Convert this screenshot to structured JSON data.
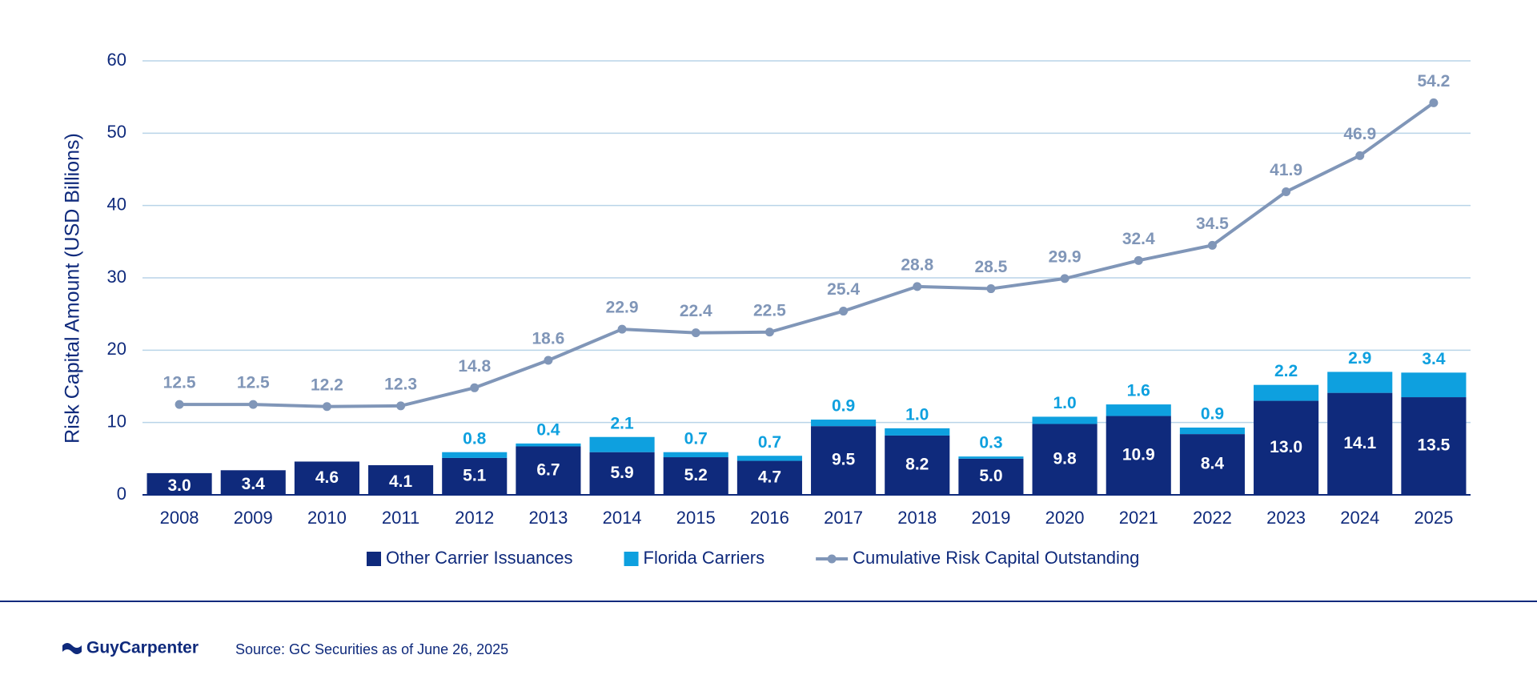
{
  "chart_data": {
    "type": "bar",
    "stacked": true,
    "y_label": "Risk Capital Amount (USD Billions)",
    "categories": [
      "2008",
      "2009",
      "2010",
      "2011",
      "2012",
      "2013",
      "2014",
      "2015",
      "2016",
      "2017",
      "2018",
      "2019",
      "2020",
      "2021",
      "2022",
      "2023",
      "2024",
      "2025"
    ],
    "series": [
      {
        "name": "Other Carrier Issuances",
        "color": "#0f2a7c",
        "type": "bar",
        "values": [
          3.0,
          3.4,
          4.6,
          4.1,
          5.1,
          6.7,
          5.9,
          5.2,
          4.7,
          9.5,
          8.2,
          5.0,
          9.8,
          10.9,
          8.4,
          13.0,
          14.1,
          13.5
        ],
        "value_labels": [
          "3.0",
          "3.4",
          "4.6",
          "4.1",
          "5.1",
          "6.7",
          "5.9",
          "5.2",
          "4.7",
          "9.5",
          "8.2",
          "5.0",
          "9.8",
          "10.9",
          "8.4",
          "13.0",
          "14.1",
          "13.5"
        ]
      },
      {
        "name": "Florida Carriers",
        "color": "#0ea0df",
        "type": "bar",
        "values": [
          null,
          null,
          null,
          null,
          0.8,
          0.4,
          2.1,
          0.7,
          0.7,
          0.9,
          1.0,
          0.3,
          1.0,
          1.6,
          0.9,
          2.2,
          2.9,
          3.4
        ],
        "value_labels": [
          null,
          null,
          null,
          null,
          "0.8",
          "0.4",
          "2.1",
          "0.7",
          "0.7",
          "0.9",
          "1.0",
          "0.3",
          "1.0",
          "1.6",
          "0.9",
          "2.2",
          "2.9",
          "3.4"
        ]
      },
      {
        "name": "Cumulative Risk Capital Outstanding",
        "color": "#8096b8",
        "type": "line",
        "values": [
          12.5,
          12.5,
          12.2,
          12.3,
          14.8,
          18.6,
          22.9,
          22.4,
          22.5,
          25.4,
          28.8,
          28.5,
          29.9,
          32.4,
          34.5,
          41.9,
          46.9,
          54.2
        ],
        "value_labels": [
          "12.5",
          "12.5",
          "12.2",
          "12.3",
          "14.8",
          "18.6",
          "22.9",
          "22.4",
          "22.5",
          "25.4",
          "28.8",
          "28.5",
          "29.9",
          "32.4",
          "34.5",
          "41.9",
          "46.9",
          "54.2"
        ]
      }
    ],
    "ylim": [
      0,
      60
    ],
    "yticks": [
      0,
      10,
      20,
      30,
      40,
      50,
      60
    ],
    "grid": true,
    "legend": "bottom"
  },
  "footer": {
    "logo": "GuyCarpenter",
    "source": "Source: GC Securities as of June 26, 2025"
  }
}
